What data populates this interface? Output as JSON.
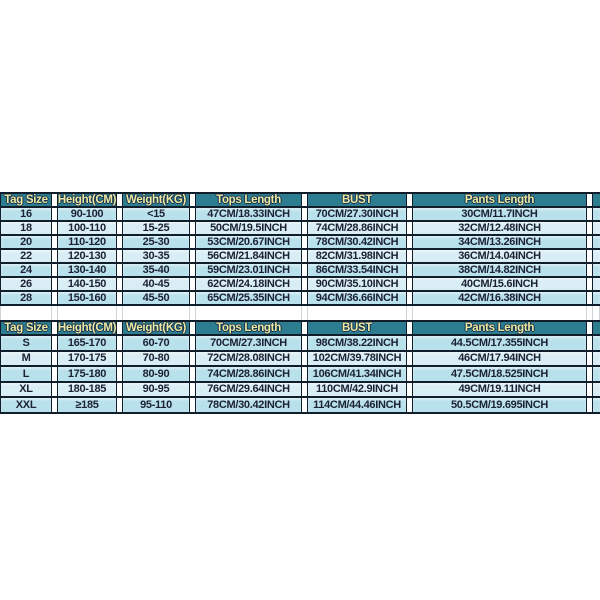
{
  "colors": {
    "header_bg": "#2e7c90",
    "header_text": "#efe9a4",
    "header_outline": "#14324a",
    "row_odd": "#b9e1ec",
    "row_even": "#d8edf4",
    "grid": "#101d2b",
    "body_text": "#1c2133",
    "page_bg": "#ffffff",
    "ghost": "#cdd3d7"
  },
  "size_chart_kids": {
    "headers": [
      "Tag Size",
      "Height(CM)",
      "Weight(KG)",
      "Tops Length",
      "BUST",
      "Pants Length"
    ],
    "rows": [
      [
        "16",
        "90-100",
        "<15",
        "47CM/18.33INCH",
        "70CM/27.30INCH",
        "30CM/11.7INCH"
      ],
      [
        "18",
        "100-110",
        "15-25",
        "50CM/19.5INCH",
        "74CM/28.86INCH",
        "32CM/12.48INCH"
      ],
      [
        "20",
        "110-120",
        "25-30",
        "53CM/20.67INCH",
        "78CM/30.42INCH",
        "34CM/13.26INCH"
      ],
      [
        "22",
        "120-130",
        "30-35",
        "56CM/21.84INCH",
        "82CM/31.98INCH",
        "36CM/14.04INCH"
      ],
      [
        "24",
        "130-140",
        "35-40",
        "59CM/23.01INCH",
        "86CM/33.54INCH",
        "38CM/14.82INCH"
      ],
      [
        "26",
        "140-150",
        "40-45",
        "62CM/24.18INCH",
        "90CM/35.10INCH",
        "40CM/15.6INCH"
      ],
      [
        "28",
        "150-160",
        "45-50",
        "65CM/25.35INCH",
        "94CM/36.66INCH",
        "42CM/16.38INCH"
      ]
    ]
  },
  "size_chart_adult": {
    "headers": [
      "Tag Size",
      "Height(CM)",
      "Weight(KG)",
      "Tops Length",
      "BUST",
      "Pants Length"
    ],
    "rows": [
      [
        "S",
        "165-170",
        "60-70",
        "70CM/27.3INCH",
        "98CM/38.22INCH",
        "44.5CM/17.355INCH"
      ],
      [
        "M",
        "170-175",
        "70-80",
        "72CM/28.08INCH",
        "102CM/39.78INCH",
        "46CM/17.94INCH"
      ],
      [
        "L",
        "175-180",
        "80-90",
        "74CM/28.86INCH",
        "106CM/41.34INCH",
        "47.5CM/18.525INCH"
      ],
      [
        "XL",
        "180-185",
        "90-95",
        "76CM/29.64INCH",
        "110CM/42.9INCH",
        "49CM/19.11INCH"
      ],
      [
        "XXL",
        "≥185",
        "95-110",
        "78CM/30.42INCH",
        "114CM/44.46INCH",
        "50.5CM/19.695INCH"
      ]
    ]
  }
}
